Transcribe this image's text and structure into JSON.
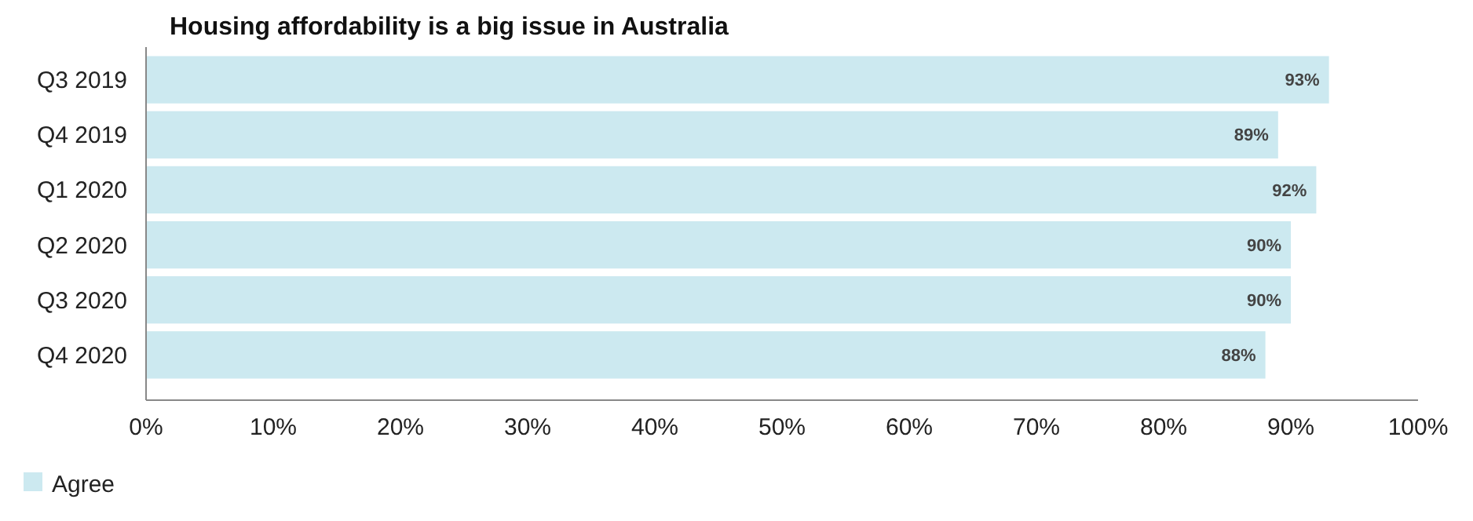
{
  "chart_data": {
    "type": "bar",
    "orientation": "horizontal",
    "title": "Housing affordability is a big issue in Australia",
    "categories": [
      "Q3 2019",
      "Q4 2019",
      "Q1 2020",
      "Q2 2020",
      "Q3 2020",
      "Q4 2020"
    ],
    "series": [
      {
        "name": "Agree",
        "color": "#cce9f0",
        "values": [
          93,
          89,
          92,
          90,
          90,
          88
        ]
      }
    ],
    "value_labels": [
      "93%",
      "89%",
      "92%",
      "90%",
      "90%",
      "88%"
    ],
    "xlim": [
      0,
      100
    ],
    "xticks": [
      {
        "value": 0,
        "label": "0%"
      },
      {
        "value": 10,
        "label": "10%"
      },
      {
        "value": 20,
        "label": "20%"
      },
      {
        "value": 30,
        "label": "30%"
      },
      {
        "value": 40,
        "label": "40%"
      },
      {
        "value": 50,
        "label": "50%"
      },
      {
        "value": 60,
        "label": "60%"
      },
      {
        "value": 70,
        "label": "70%"
      },
      {
        "value": 80,
        "label": "80%"
      },
      {
        "value": 90,
        "label": "90%"
      },
      {
        "value": 100,
        "label": "100%"
      }
    ],
    "grid": false,
    "legend": "bottom left"
  }
}
